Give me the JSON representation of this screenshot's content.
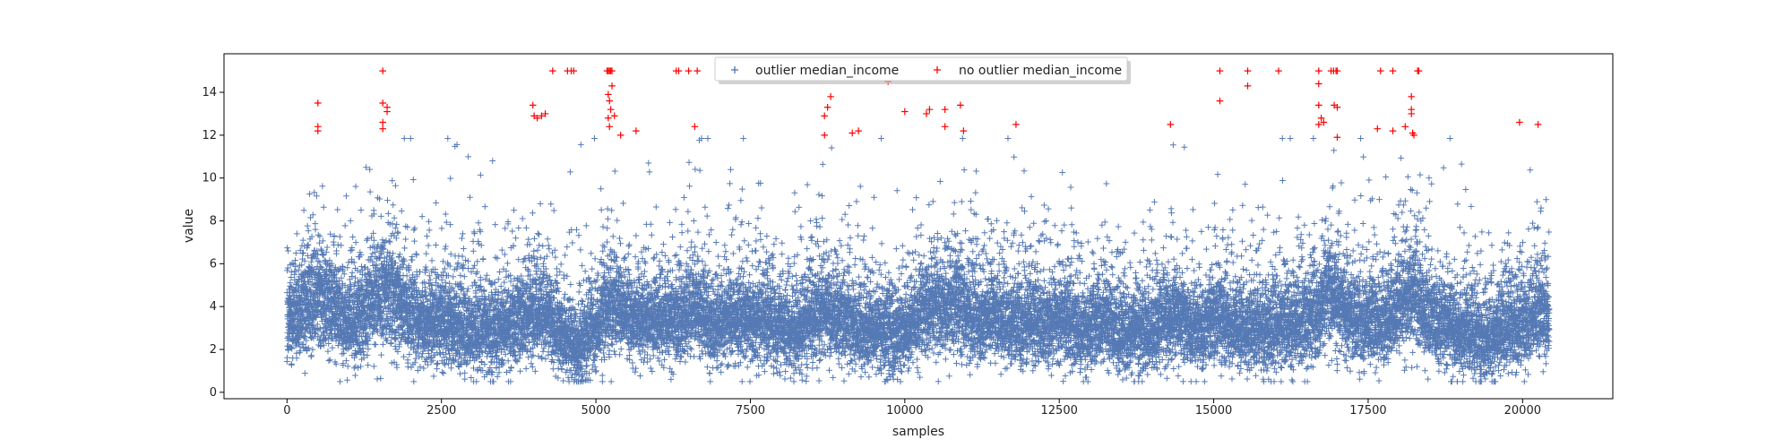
{
  "chart_data": {
    "type": "scatter",
    "title": "",
    "xlabel": "samples",
    "ylabel": "value",
    "xlim": [
      -1020,
      21460
    ],
    "ylim": [
      -0.3,
      15.8
    ],
    "x_ticks": [
      0,
      2500,
      5000,
      7500,
      10000,
      12500,
      15000,
      17500,
      20000
    ],
    "x_tick_labels": [
      "0",
      "2500",
      "5000",
      "7500",
      "10000",
      "12500",
      "15000",
      "17500",
      "20000"
    ],
    "y_ticks": [
      0,
      2,
      4,
      6,
      8,
      10,
      12,
      14
    ],
    "y_tick_labels": [
      "0",
      "2",
      "4",
      "6",
      "8",
      "10",
      "12",
      "14"
    ],
    "grid": false,
    "legend": {
      "position": "top-center",
      "entries": [
        "outlier median_income",
        "no outlier median_income"
      ]
    },
    "marker": "+",
    "series": [
      {
        "name": "outlier median_income",
        "color": "#4c72b0",
        "n_points": 20433,
        "value_range": [
          0.5,
          11.8
        ],
        "points": []
      },
      {
        "name": "no outlier median_income",
        "color": "#ff0000",
        "points": [
          [
            500,
            13.5
          ],
          [
            500,
            12.4
          ],
          [
            500,
            12.2
          ],
          [
            1550,
            15.0
          ],
          [
            1550,
            13.5
          ],
          [
            1550,
            12.6
          ],
          [
            1550,
            12.3
          ],
          [
            1620,
            13.3
          ],
          [
            1620,
            13.1
          ],
          [
            3980,
            13.4
          ],
          [
            4000,
            12.9
          ],
          [
            4050,
            12.8
          ],
          [
            4120,
            12.9
          ],
          [
            4180,
            13.0
          ],
          [
            4300,
            15.0
          ],
          [
            4540,
            15.0
          ],
          [
            4600,
            15.0
          ],
          [
            4640,
            15.0
          ],
          [
            5180,
            15.0
          ],
          [
            5200,
            15.0
          ],
          [
            5220,
            15.0
          ],
          [
            5240,
            15.0
          ],
          [
            5260,
            15.0
          ],
          [
            5200,
            13.9
          ],
          [
            5220,
            13.6
          ],
          [
            5240,
            13.2
          ],
          [
            5260,
            14.3
          ],
          [
            5200,
            12.8
          ],
          [
            5220,
            12.4
          ],
          [
            5300,
            12.9
          ],
          [
            5400,
            12.0
          ],
          [
            5650,
            12.2
          ],
          [
            6300,
            15.0
          ],
          [
            6340,
            15.0
          ],
          [
            6500,
            15.0
          ],
          [
            6640,
            15.0
          ],
          [
            6600,
            12.4
          ],
          [
            8650,
            15.0
          ],
          [
            8700,
            12.9
          ],
          [
            8700,
            12.0
          ],
          [
            8750,
            13.3
          ],
          [
            8800,
            13.8
          ],
          [
            9150,
            12.1
          ],
          [
            9250,
            12.2
          ],
          [
            9730,
            14.5
          ],
          [
            10000,
            13.1
          ],
          [
            10350,
            13.0
          ],
          [
            10400,
            13.2
          ],
          [
            10650,
            13.2
          ],
          [
            10650,
            12.4
          ],
          [
            10900,
            13.4
          ],
          [
            10950,
            12.2
          ],
          [
            11800,
            12.5
          ],
          [
            14300,
            12.5
          ],
          [
            15100,
            15.0
          ],
          [
            15100,
            13.6
          ],
          [
            15550,
            15.0
          ],
          [
            15550,
            14.3
          ],
          [
            16050,
            15.0
          ],
          [
            16700,
            15.0
          ],
          [
            16700,
            14.4
          ],
          [
            16700,
            13.4
          ],
          [
            16700,
            12.5
          ],
          [
            16740,
            12.8
          ],
          [
            16780,
            12.6
          ],
          [
            16900,
            15.0
          ],
          [
            16940,
            15.0
          ],
          [
            16980,
            15.0
          ],
          [
            17000,
            15.0
          ],
          [
            16950,
            13.4
          ],
          [
            17000,
            13.3
          ],
          [
            17000,
            11.9
          ],
          [
            17650,
            12.3
          ],
          [
            17700,
            15.0
          ],
          [
            17900,
            15.0
          ],
          [
            17900,
            12.2
          ],
          [
            18100,
            12.4
          ],
          [
            18200,
            13.8
          ],
          [
            18200,
            13.2
          ],
          [
            18200,
            13.0
          ],
          [
            18220,
            12.1
          ],
          [
            18240,
            12.0
          ],
          [
            18300,
            15.0
          ],
          [
            18320,
            15.0
          ],
          [
            19950,
            12.6
          ],
          [
            20250,
            12.5
          ]
        ]
      }
    ]
  }
}
